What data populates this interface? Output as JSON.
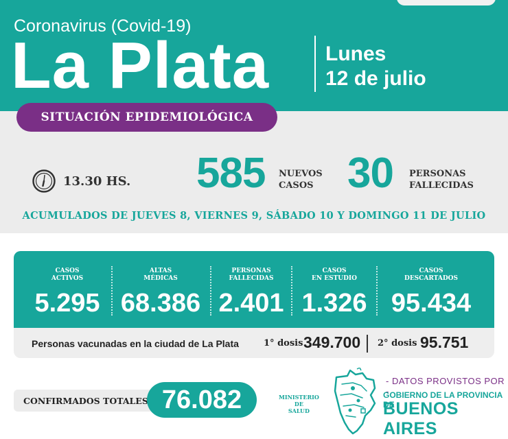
{
  "header": {
    "subtitle": "Coronavirus (Covid-19)",
    "city": "La Plata",
    "day": "Lunes",
    "date": "12 de julio"
  },
  "badge": "SITUACIÓN EPIDEMIOLÓGICA",
  "report": {
    "time": "13.30 HS.",
    "new_cases": "585",
    "new_cases_label_1": "NUEVOS",
    "new_cases_label_2": "CASOS",
    "deaths": "30",
    "deaths_label_1": "PERSONAS",
    "deaths_label_2": "FALLECIDAS",
    "accumulated_note": "ACUMULADOS DE JUEVES 8, VIERNES 9, SÁBADO 10 Y DOMINGO 11 DE JULIO"
  },
  "stats": [
    {
      "label_1": "CASOS",
      "label_2": "ACTIVOS",
      "value": "5.295"
    },
    {
      "label_1": "ALTAS",
      "label_2": "MÉDICAS",
      "value": "68.386"
    },
    {
      "label_1": "PERSONAS",
      "label_2": "FALLECIDAS",
      "value": "2.401"
    },
    {
      "label_1": "CASOS",
      "label_2": "EN ESTUDIO",
      "value": "1.326"
    },
    {
      "label_1": "CASOS",
      "label_2": "DESCARTADOS",
      "value": "95.434"
    }
  ],
  "vaccination": {
    "label": "Personas vacunadas en la ciudad de La Plata",
    "dose1_label": "1° dosis",
    "dose1_value": "349.700",
    "dose2_label": "2° dosis",
    "dose2_value": "95.751"
  },
  "confirmed": {
    "label": "CONFIRMADOS TOTALES",
    "value": "76.082"
  },
  "footer": {
    "ministry_1": "MINISTERIO",
    "ministry_2": "DE",
    "ministry_3": "SALUD",
    "provided_by": "- DATOS PROVISTOS POR -",
    "government": "GOBIERNO DE LA PROVINCIA DE",
    "province": "BUENOS AIRES"
  },
  "colors": {
    "teal": "#17a69b",
    "purple": "#7a2f86",
    "light_gray": "#ececec"
  },
  "icons": {
    "clock": "clock-icon",
    "map": "buenos-aires-map-icon"
  }
}
